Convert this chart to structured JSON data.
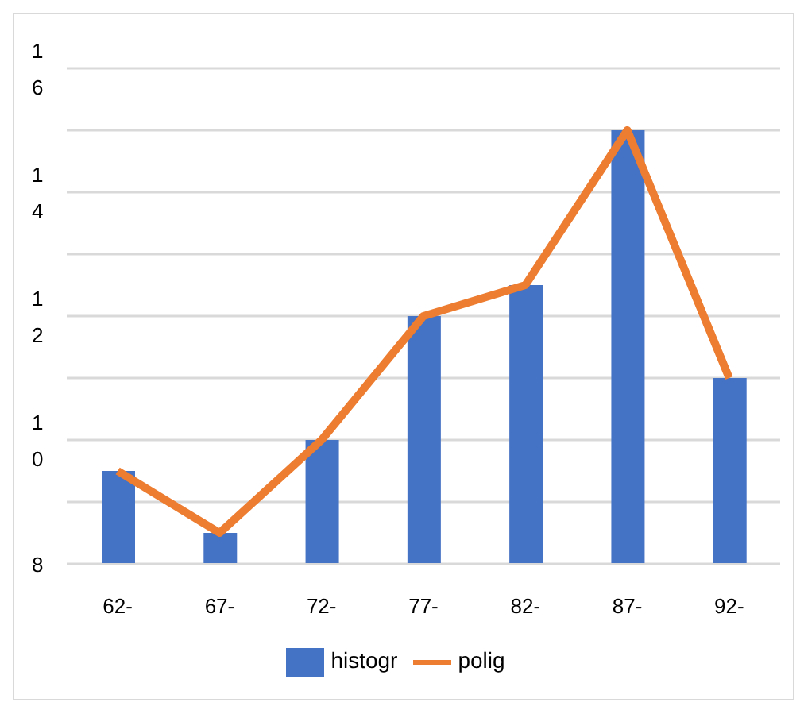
{
  "chart_data": {
    "type": "bar",
    "categories": [
      "62-",
      "67-",
      "72-",
      "77-",
      "82-",
      "87-",
      "92-"
    ],
    "series": [
      {
        "name": "histogr",
        "color": "#4472c4",
        "values": [
          9.5,
          8.5,
          10,
          12,
          12.5,
          15,
          11
        ]
      },
      {
        "name": "polig",
        "type": "line",
        "color": "#ed7d31",
        "values": [
          9.5,
          8.5,
          10,
          12,
          12.5,
          15,
          11
        ]
      }
    ],
    "ylim": [
      8,
      16
    ],
    "yticks": [
      8,
      {
        "value": 9,
        "label": null
      },
      10,
      {
        "value": 11,
        "label": null
      },
      12,
      {
        "value": 13,
        "label": null
      },
      14,
      {
        "value": 15,
        "label": null
      },
      16
    ],
    "grid": "y",
    "legend": "bottom",
    "marker": "none"
  }
}
